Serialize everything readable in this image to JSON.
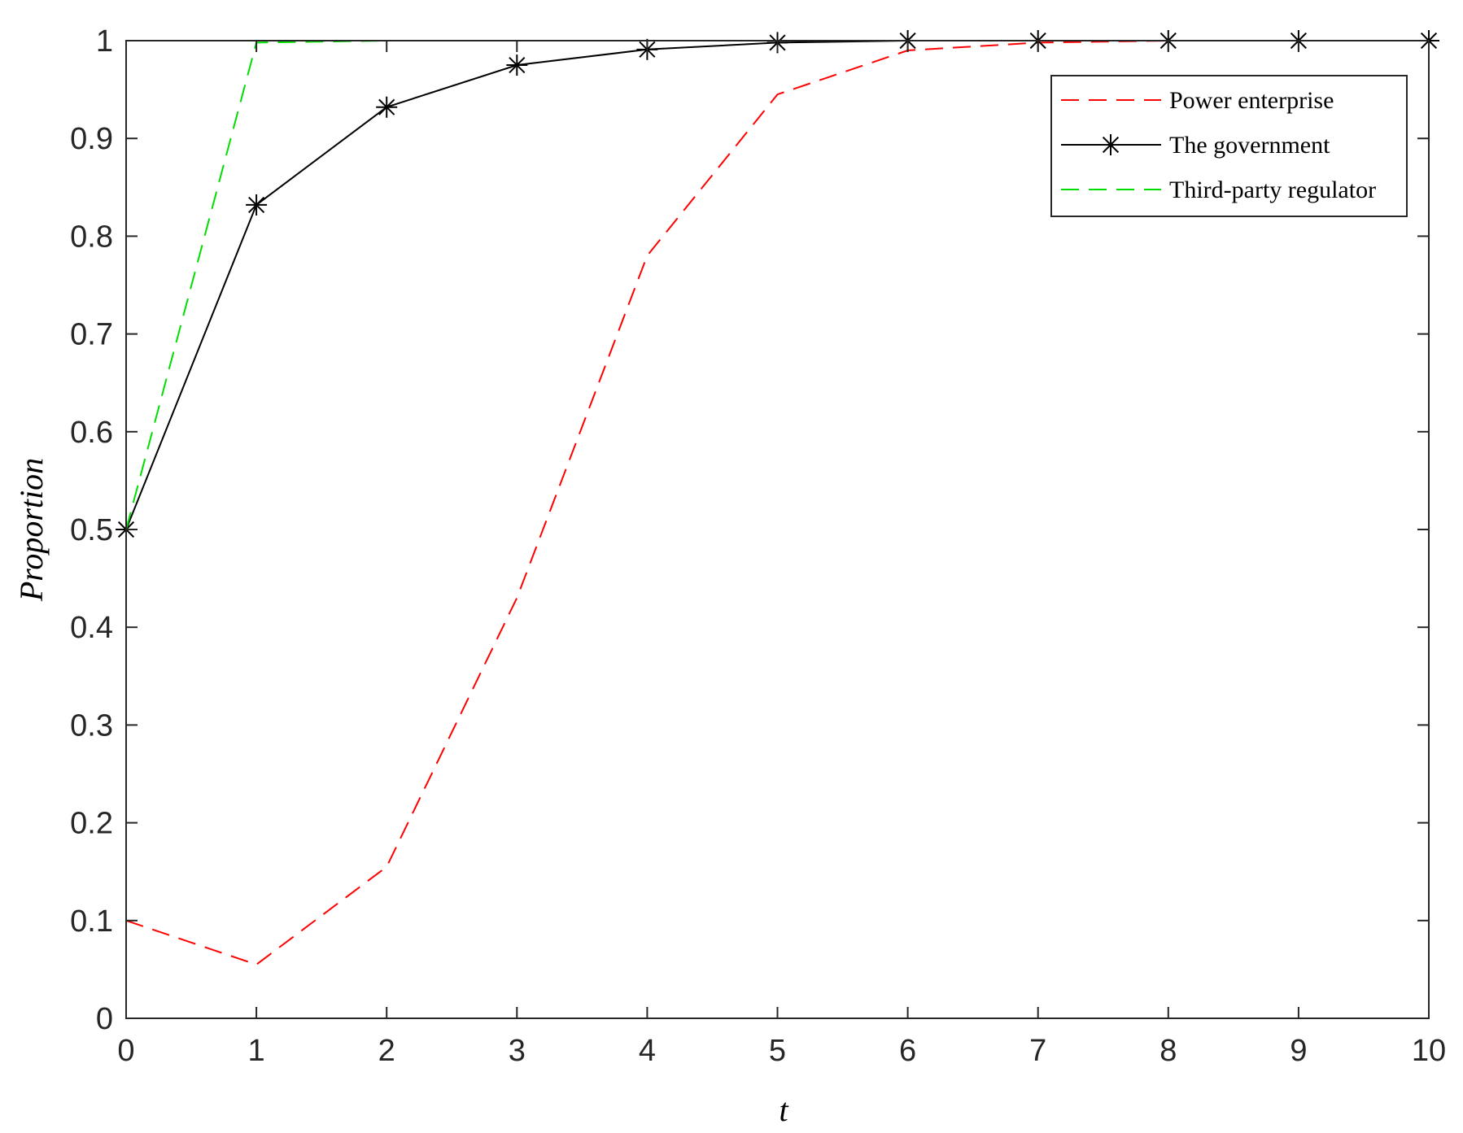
{
  "chart_data": {
    "type": "line",
    "title": "",
    "xlabel": "t",
    "ylabel": "Proportion",
    "xlim": [
      0,
      10
    ],
    "ylim": [
      0,
      1
    ],
    "x_ticks": [
      0,
      1,
      2,
      3,
      4,
      5,
      6,
      7,
      8,
      9,
      10
    ],
    "y_ticks": [
      0,
      0.1,
      0.2,
      0.3,
      0.4,
      0.5,
      0.6,
      0.7,
      0.8,
      0.9,
      1
    ],
    "x_tick_labels": [
      "0",
      "1",
      "2",
      "3",
      "4",
      "5",
      "6",
      "7",
      "8",
      "9",
      "10"
    ],
    "y_tick_labels": [
      "0",
      "0.1",
      "0.2",
      "0.3",
      "0.4",
      "0.5",
      "0.6",
      "0.7",
      "0.8",
      "0.9",
      "1"
    ],
    "grid": false,
    "legend_position": "top-right",
    "x": [
      0,
      1,
      2,
      3,
      4,
      5,
      6,
      7,
      8,
      9,
      10
    ],
    "series": [
      {
        "name": "Power enterprise",
        "color": "#ff0000",
        "line_style": "dashed",
        "marker": "none",
        "values": [
          0.1,
          0.055,
          0.155,
          0.43,
          0.78,
          0.945,
          0.99,
          0.998,
          1.0,
          1.0,
          1.0
        ]
      },
      {
        "name": "The government",
        "color": "#000000",
        "line_style": "solid",
        "marker": "asterisk",
        "values": [
          0.5,
          0.832,
          0.932,
          0.975,
          0.991,
          0.998,
          1.0,
          1.0,
          1.0,
          1.0,
          1.0
        ]
      },
      {
        "name": "Third-party regulator",
        "color": "#00dd00",
        "line_style": "dashed",
        "marker": "none",
        "values": [
          0.5,
          0.998,
          1.0,
          1.0,
          1.0,
          1.0,
          1.0,
          1.0,
          1.0,
          1.0,
          1.0
        ]
      }
    ]
  }
}
